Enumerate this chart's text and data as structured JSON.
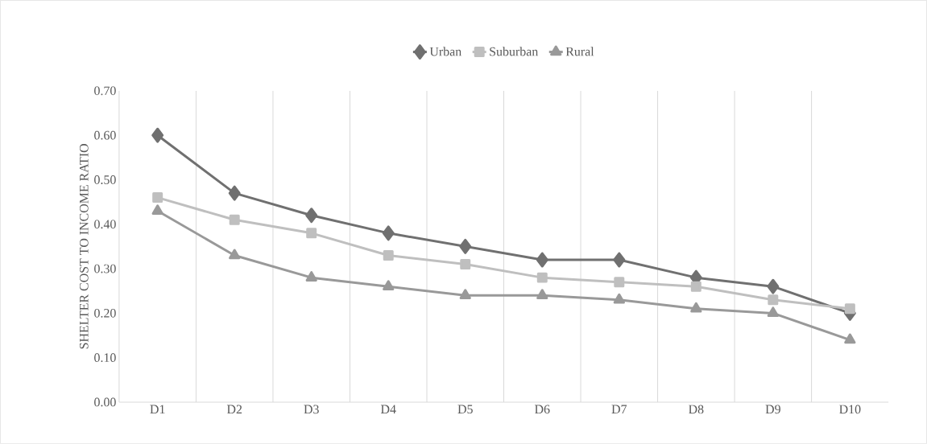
{
  "chart_data": {
    "type": "line",
    "ylabel": "SHELTER COST TO INCOME RATIO",
    "categories": [
      "D1",
      "D2",
      "D3",
      "D4",
      "D5",
      "D6",
      "D7",
      "D8",
      "D9",
      "D10"
    ],
    "series": [
      {
        "name": "Urban",
        "color": "#707070",
        "marker": "diamond",
        "values": [
          0.6,
          0.47,
          0.42,
          0.38,
          0.35,
          0.32,
          0.32,
          0.28,
          0.26,
          0.2
        ]
      },
      {
        "name": "Suburban",
        "color": "#bfbfbf",
        "marker": "square",
        "values": [
          0.46,
          0.41,
          0.38,
          0.33,
          0.31,
          0.28,
          0.27,
          0.26,
          0.23,
          0.21
        ]
      },
      {
        "name": "Rural",
        "color": "#999999",
        "marker": "triangle",
        "values": [
          0.43,
          0.33,
          0.28,
          0.26,
          0.24,
          0.24,
          0.23,
          0.21,
          0.2,
          0.14
        ]
      }
    ],
    "ylim": [
      0,
      0.7
    ],
    "yticks": [
      {
        "value": 0,
        "label": "0.00"
      },
      {
        "value": 0.1,
        "label": "0.10"
      },
      {
        "value": 0.2,
        "label": "0.20"
      },
      {
        "value": 0.3,
        "label": "0.30"
      },
      {
        "value": 0.4,
        "label": "0.40"
      },
      {
        "value": 0.5,
        "label": "0.50"
      },
      {
        "value": 0.6,
        "label": "0.60"
      },
      {
        "value": 0.7,
        "label": "0.70"
      }
    ],
    "grid": "x",
    "legend": "top",
    "line_style": "solid"
  }
}
